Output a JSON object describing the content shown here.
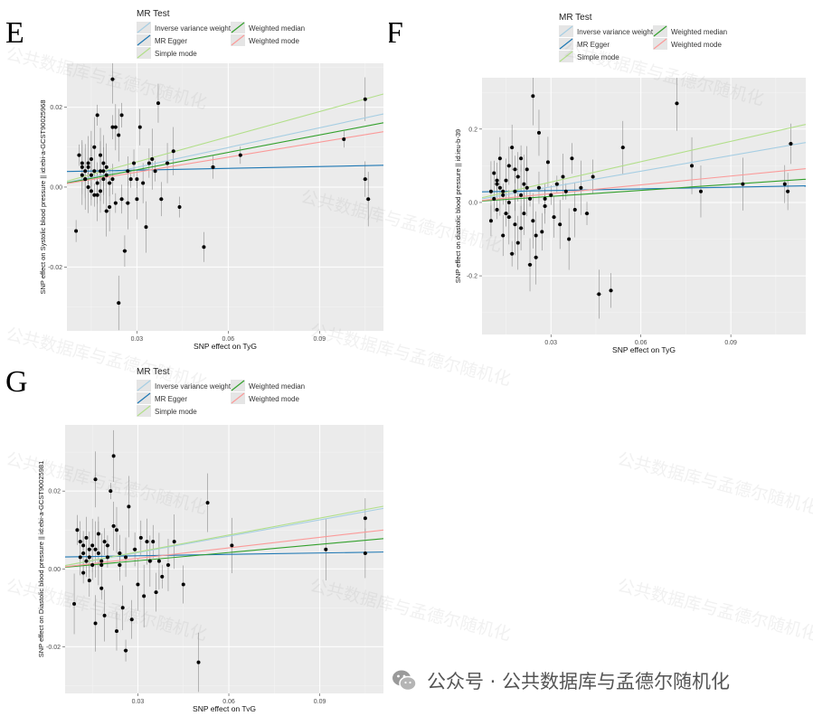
{
  "panels": {
    "E": "E",
    "F": "F",
    "G": "G"
  },
  "legend": {
    "title": "MR Test",
    "items": [
      {
        "label": "Inverse variance weighted",
        "color": "#a6cee3"
      },
      {
        "label": "MR Egger",
        "color": "#1f78b4"
      },
      {
        "label": "Simple mode",
        "color": "#b2df8a"
      },
      {
        "label": "Weighted median",
        "color": "#33a02c"
      },
      {
        "label": "Weighted mode",
        "color": "#fb9a99"
      }
    ]
  },
  "watermark_text": "公共数据库与孟德尔随机化",
  "footer": {
    "text": "公众号 · 公共数据库与孟德尔随机化",
    "icon": "wechat-icon"
  },
  "chart_data": [
    {
      "type": "scatter",
      "panel": "E",
      "xlabel": "SNP effect on TyG",
      "ylabel": "SNP effect on Systolic blood pressure || id:ebi-a-GCST90025968",
      "xlim": [
        0.007,
        0.111
      ],
      "ylim": [
        -0.036,
        0.031
      ],
      "x_ticks": [
        0.03,
        0.06,
        0.09
      ],
      "y_ticks": [
        -0.02,
        0.0,
        0.02
      ],
      "x_tick_labels": [
        "0.03",
        "0.06",
        "0.09"
      ],
      "y_tick_labels": [
        "-0.02",
        "0.00",
        "0.02"
      ],
      "lines": [
        {
          "name": "Inverse variance weighted",
          "slope": 0.165,
          "intercept": 0
        },
        {
          "name": "MR Egger",
          "slope": 0.015,
          "intercept": 0.0038
        },
        {
          "name": "Simple mode",
          "slope": 0.21,
          "intercept": 0
        },
        {
          "name": "Weighted median",
          "slope": 0.145,
          "intercept": 0
        },
        {
          "name": "Weighted mode",
          "slope": 0.125,
          "intercept": 0
        }
      ],
      "points": [
        [
          0.01,
          -0.011
        ],
        [
          0.011,
          0.008
        ],
        [
          0.012,
          0.003
        ],
        [
          0.012,
          0.006
        ],
        [
          0.013,
          0.004
        ],
        [
          0.013,
          0.002
        ],
        [
          0.014,
          0.0
        ],
        [
          0.014,
          0.005
        ],
        [
          0.015,
          0.007
        ],
        [
          0.015,
          0.003
        ],
        [
          0.016,
          -0.002
        ],
        [
          0.016,
          0.01
        ],
        [
          0.017,
          0.018
        ],
        [
          0.017,
          0.001
        ],
        [
          0.018,
          0.004
        ],
        [
          0.018,
          -0.001
        ],
        [
          0.019,
          0.002
        ],
        [
          0.019,
          0.006
        ],
        [
          0.02,
          -0.006
        ],
        [
          0.02,
          0.003
        ],
        [
          0.021,
          0.001
        ],
        [
          0.022,
          0.027
        ],
        [
          0.022,
          0.015
        ],
        [
          0.023,
          -0.004
        ],
        [
          0.023,
          0.015
        ],
        [
          0.024,
          0.013
        ],
        [
          0.024,
          -0.029
        ],
        [
          0.025,
          0.018
        ],
        [
          0.026,
          -0.016
        ],
        [
          0.027,
          0.004
        ],
        [
          0.028,
          0.002
        ],
        [
          0.029,
          0.006
        ],
        [
          0.03,
          -0.003
        ],
        [
          0.031,
          0.015
        ],
        [
          0.032,
          0.001
        ],
        [
          0.033,
          -0.01
        ],
        [
          0.034,
          0.006
        ],
        [
          0.035,
          0.007
        ],
        [
          0.036,
          0.004
        ],
        [
          0.037,
          0.021
        ],
        [
          0.038,
          -0.003
        ],
        [
          0.04,
          0.006
        ],
        [
          0.042,
          0.009
        ],
        [
          0.044,
          -0.005
        ],
        [
          0.052,
          -0.015
        ],
        [
          0.055,
          0.005
        ],
        [
          0.064,
          0.008
        ],
        [
          0.098,
          0.012
        ],
        [
          0.105,
          0.022
        ],
        [
          0.105,
          0.002
        ],
        [
          0.106,
          -0.003
        ],
        [
          0.012,
          0.005
        ],
        [
          0.014,
          0.006
        ],
        [
          0.016,
          0.004
        ],
        [
          0.018,
          0.008
        ],
        [
          0.013,
          0.002
        ],
        [
          0.015,
          -0.001
        ],
        [
          0.017,
          -0.002
        ],
        [
          0.019,
          0.004
        ],
        [
          0.021,
          -0.005
        ],
        [
          0.02,
          0.005
        ],
        [
          0.022,
          0.002
        ],
        [
          0.025,
          -0.003
        ],
        [
          0.027,
          -0.004
        ],
        [
          0.03,
          0.002
        ]
      ]
    },
    {
      "type": "scatter",
      "panel": "F",
      "xlabel": "SNP effect on TyG",
      "ylabel": "SNP effect on diastolic blood pressure || id:ieu-b-39",
      "xlim": [
        0.007,
        0.115
      ],
      "ylim": [
        -0.36,
        0.34
      ],
      "x_ticks": [
        0.03,
        0.06,
        0.09
      ],
      "y_ticks": [
        -0.2,
        0.0,
        0.2
      ],
      "x_tick_labels": [
        "0.03",
        "0.06",
        "0.09"
      ],
      "y_tick_labels": [
        "-0.2",
        "0.0",
        "0.2"
      ],
      "lines": [
        {
          "name": "Inverse variance weighted",
          "slope": 1.42,
          "intercept": 0
        },
        {
          "name": "MR Egger",
          "slope": 0.15,
          "intercept": 0.028
        },
        {
          "name": "Simple mode",
          "slope": 1.85,
          "intercept": 0
        },
        {
          "name": "Weighted median",
          "slope": 0.55,
          "intercept": 0
        },
        {
          "name": "Weighted mode",
          "slope": 0.8,
          "intercept": 0
        }
      ],
      "points": [
        [
          0.01,
          -0.05
        ],
        [
          0.01,
          0.03
        ],
        [
          0.011,
          0.08
        ],
        [
          0.011,
          0.01
        ],
        [
          0.012,
          0.05
        ],
        [
          0.012,
          -0.02
        ],
        [
          0.013,
          0.12
        ],
        [
          0.013,
          0.04
        ],
        [
          0.014,
          -0.09
        ],
        [
          0.014,
          0.02
        ],
        [
          0.015,
          0.06
        ],
        [
          0.015,
          -0.03
        ],
        [
          0.016,
          0.1
        ],
        [
          0.016,
          0.0
        ],
        [
          0.017,
          -0.14
        ],
        [
          0.017,
          0.15
        ],
        [
          0.018,
          0.03
        ],
        [
          0.018,
          -0.06
        ],
        [
          0.019,
          0.07
        ],
        [
          0.019,
          -0.11
        ],
        [
          0.02,
          0.02
        ],
        [
          0.02,
          0.12
        ],
        [
          0.021,
          -0.03
        ],
        [
          0.021,
          0.05
        ],
        [
          0.022,
          0.09
        ],
        [
          0.023,
          -0.17
        ],
        [
          0.023,
          0.01
        ],
        [
          0.024,
          0.29
        ],
        [
          0.024,
          -0.05
        ],
        [
          0.025,
          -0.15
        ],
        [
          0.026,
          0.19
        ],
        [
          0.026,
          0.04
        ],
        [
          0.027,
          -0.08
        ],
        [
          0.028,
          0.01
        ],
        [
          0.029,
          0.11
        ],
        [
          0.03,
          0.02
        ],
        [
          0.031,
          -0.04
        ],
        [
          0.032,
          0.05
        ],
        [
          0.033,
          -0.06
        ],
        [
          0.034,
          0.07
        ],
        [
          0.035,
          0.03
        ],
        [
          0.036,
          -0.1
        ],
        [
          0.037,
          0.12
        ],
        [
          0.038,
          -0.02
        ],
        [
          0.04,
          0.04
        ],
        [
          0.042,
          -0.03
        ],
        [
          0.044,
          0.07
        ],
        [
          0.046,
          -0.25
        ],
        [
          0.05,
          -0.24
        ],
        [
          0.054,
          0.15
        ],
        [
          0.072,
          0.27
        ],
        [
          0.077,
          0.1
        ],
        [
          0.08,
          0.03
        ],
        [
          0.094,
          0.05
        ],
        [
          0.108,
          0.05
        ],
        [
          0.109,
          0.03
        ],
        [
          0.11,
          0.16
        ],
        [
          0.012,
          0.06
        ],
        [
          0.014,
          0.03
        ],
        [
          0.016,
          -0.04
        ],
        [
          0.018,
          0.09
        ],
        [
          0.02,
          -0.07
        ],
        [
          0.022,
          0.04
        ],
        [
          0.025,
          -0.09
        ],
        [
          0.028,
          -0.01
        ]
      ]
    },
    {
      "type": "scatter",
      "panel": "G",
      "xlabel": "SNP effect on TyG",
      "ylabel": "SNP effect on Diastolic blood pressure || id:ebi-a-GCST90025981",
      "xlim": [
        0.006,
        0.111
      ],
      "ylim": [
        -0.032,
        0.037
      ],
      "x_ticks": [
        0.03,
        0.06,
        0.09
      ],
      "y_ticks": [
        -0.02,
        0.0,
        0.02
      ],
      "x_tick_labels": [
        "0.03",
        "0.06",
        "0.09"
      ],
      "y_tick_labels": [
        "-0.02",
        "0.00",
        "0.02"
      ],
      "lines": [
        {
          "name": "Inverse variance weighted",
          "slope": 0.14,
          "intercept": 0
        },
        {
          "name": "MR Egger",
          "slope": 0.012,
          "intercept": 0.003
        },
        {
          "name": "Simple mode",
          "slope": 0.145,
          "intercept": 0
        },
        {
          "name": "Weighted median",
          "slope": 0.07,
          "intercept": 0
        },
        {
          "name": "Weighted mode",
          "slope": 0.09,
          "intercept": 0
        }
      ],
      "points": [
        [
          0.009,
          -0.009
        ],
        [
          0.01,
          0.01
        ],
        [
          0.011,
          0.003
        ],
        [
          0.011,
          0.007
        ],
        [
          0.012,
          -0.001
        ],
        [
          0.012,
          0.004
        ],
        [
          0.013,
          0.002
        ],
        [
          0.013,
          0.008
        ],
        [
          0.014,
          0.005
        ],
        [
          0.014,
          -0.003
        ],
        [
          0.015,
          0.006
        ],
        [
          0.015,
          0.001
        ],
        [
          0.016,
          0.023
        ],
        [
          0.016,
          -0.014
        ],
        [
          0.017,
          0.004
        ],
        [
          0.017,
          0.009
        ],
        [
          0.018,
          0.002
        ],
        [
          0.018,
          -0.005
        ],
        [
          0.019,
          0.007
        ],
        [
          0.019,
          -0.012
        ],
        [
          0.02,
          0.003
        ],
        [
          0.021,
          0.02
        ],
        [
          0.022,
          0.011
        ],
        [
          0.022,
          0.029
        ],
        [
          0.023,
          -0.016
        ],
        [
          0.023,
          0.01
        ],
        [
          0.024,
          0.004
        ],
        [
          0.025,
          -0.01
        ],
        [
          0.026,
          -0.021
        ],
        [
          0.027,
          0.016
        ],
        [
          0.028,
          -0.013
        ],
        [
          0.029,
          0.005
        ],
        [
          0.03,
          -0.004
        ],
        [
          0.031,
          0.008
        ],
        [
          0.032,
          -0.007
        ],
        [
          0.033,
          0.007
        ],
        [
          0.034,
          0.002
        ],
        [
          0.035,
          0.007
        ],
        [
          0.036,
          -0.006
        ],
        [
          0.037,
          0.002
        ],
        [
          0.038,
          -0.002
        ],
        [
          0.04,
          0.001
        ],
        [
          0.042,
          0.007
        ],
        [
          0.045,
          -0.004
        ],
        [
          0.05,
          -0.024
        ],
        [
          0.053,
          0.017
        ],
        [
          0.061,
          0.006
        ],
        [
          0.092,
          0.005
        ],
        [
          0.105,
          0.013
        ],
        [
          0.105,
          0.004
        ],
        [
          0.012,
          0.006
        ],
        [
          0.014,
          0.003
        ],
        [
          0.016,
          0.005
        ],
        [
          0.018,
          0.001
        ],
        [
          0.02,
          0.006
        ],
        [
          0.024,
          0.001
        ],
        [
          0.026,
          0.003
        ]
      ]
    }
  ]
}
